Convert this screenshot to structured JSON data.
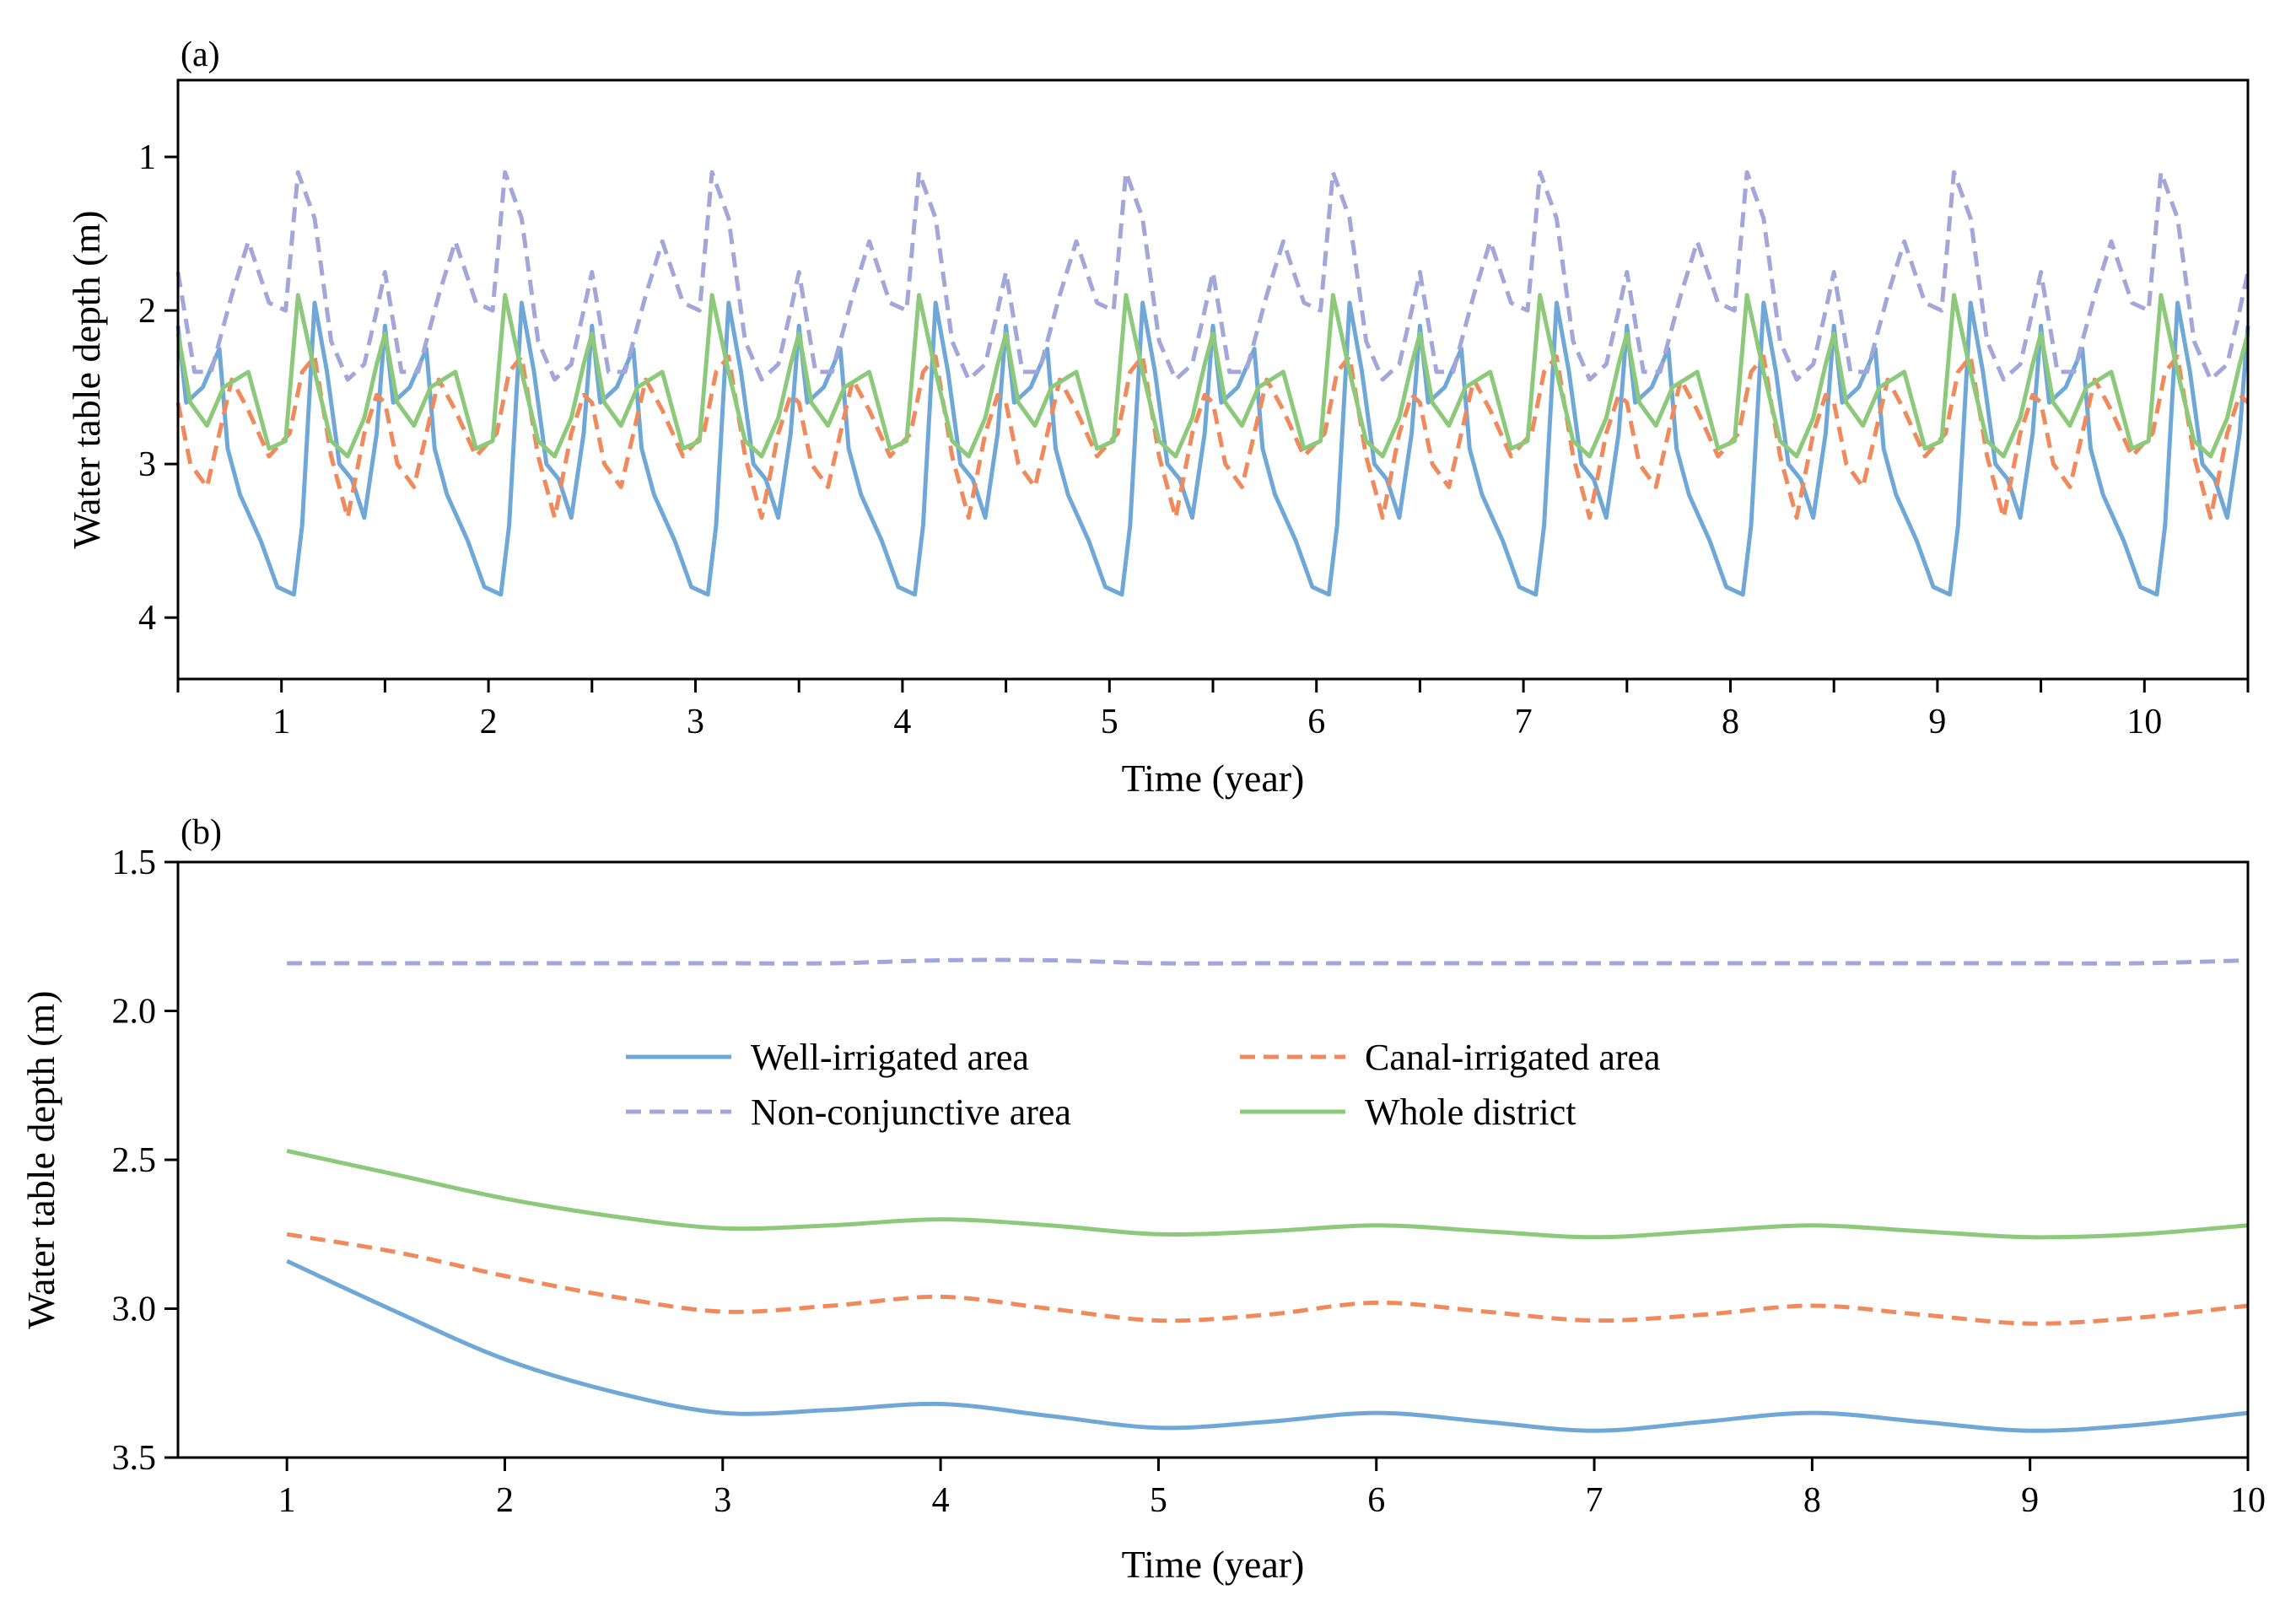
{
  "colors": {
    "well": "#6fa8d6",
    "canal": "#f08a5d",
    "non_conjunctive": "#a3a6d9",
    "whole": "#8dc97a"
  },
  "chart_data": [
    {
      "panel": "(a)",
      "type": "line",
      "xlabel": "Time (year)",
      "ylabel": "Water table depth (m)",
      "xlim": [
        0.5,
        10.5
      ],
      "ylim": [
        0.5,
        4.4
      ],
      "y_inverted": true,
      "xticks": [
        1,
        2,
        3,
        4,
        5,
        6,
        7,
        8,
        9,
        10
      ],
      "yticks": [
        1,
        2,
        3,
        4
      ],
      "x_minor_ticks": [
        0.5,
        1.5,
        2.5,
        3.5,
        4.5,
        5.5,
        6.5,
        7.5,
        8.5,
        9.5,
        10.5
      ],
      "note": "Monthly-resolution series repeating a one-year cycle; x in years from 0.5, values are depth in m",
      "series": [
        {
          "name": "Well-irrigated area",
          "key": "well",
          "dashed": false,
          "cycle_start": 0.5,
          "cycles": 10,
          "cycle_x": [
            0,
            0.04,
            0.12,
            0.2,
            0.24,
            0.3,
            0.4,
            0.48,
            0.56,
            0.6,
            0.66,
            0.72,
            0.78,
            0.84,
            0.9,
            0.96,
            1.0
          ],
          "cycle_y": [
            2.1,
            2.6,
            2.5,
            2.25,
            2.9,
            3.2,
            3.5,
            3.8,
            3.85,
            3.4,
            1.95,
            2.4,
            3.0,
            3.1,
            3.35,
            2.8,
            2.1
          ]
        },
        {
          "name": "Canal-irrigated area",
          "key": "canal",
          "dashed": true,
          "cycle_start": 0.5,
          "cycles": 10,
          "cycle_x": [
            0,
            0.06,
            0.14,
            0.26,
            0.34,
            0.44,
            0.54,
            0.6,
            0.66,
            0.74,
            0.82,
            0.9,
            0.96,
            1.0
          ],
          "cycle_y": [
            2.6,
            3.0,
            3.15,
            2.45,
            2.65,
            2.95,
            2.8,
            2.4,
            2.3,
            2.95,
            3.35,
            2.8,
            2.55,
            2.6
          ]
        },
        {
          "name": "Non-conjunctive area",
          "key": "non_conjunctive",
          "dashed": true,
          "cycle_start": 0.5,
          "cycles": 10,
          "cycle_x": [
            0,
            0.08,
            0.16,
            0.26,
            0.34,
            0.44,
            0.52,
            0.58,
            0.66,
            0.74,
            0.82,
            0.9,
            0.96,
            1.0
          ],
          "cycle_y": [
            1.75,
            2.4,
            2.4,
            1.9,
            1.55,
            1.95,
            2.0,
            1.1,
            1.4,
            2.2,
            2.45,
            2.35,
            2.0,
            1.75
          ]
        },
        {
          "name": "Whole district",
          "key": "whole",
          "dashed": false,
          "cycle_start": 0.5,
          "cycles": 10,
          "cycle_x": [
            0,
            0.06,
            0.14,
            0.22,
            0.28,
            0.34,
            0.44,
            0.52,
            0.58,
            0.66,
            0.74,
            0.82,
            0.9,
            0.96,
            1.0
          ],
          "cycle_y": [
            2.15,
            2.6,
            2.75,
            2.5,
            2.45,
            2.4,
            2.9,
            2.85,
            1.9,
            2.4,
            2.85,
            2.95,
            2.7,
            2.35,
            2.15
          ]
        }
      ]
    },
    {
      "panel": "(b)",
      "type": "line",
      "xlabel": "Time (year)",
      "ylabel": "Water table depth (m)",
      "xlim": [
        0.5,
        10
      ],
      "ylim": [
        1.5,
        3.5
      ],
      "y_inverted": true,
      "xticks": [
        1,
        2,
        3,
        4,
        5,
        6,
        7,
        8,
        9,
        10
      ],
      "yticks": [
        1.5,
        2.0,
        2.5,
        3.0,
        3.5
      ],
      "ytick_labels": [
        "1.5",
        "2.0",
        "2.5",
        "3.0",
        "3.5"
      ],
      "x": [
        1,
        1.5,
        2,
        2.5,
        3,
        3.5,
        4,
        4.5,
        5,
        5.5,
        6,
        6.5,
        7,
        7.5,
        8,
        8.5,
        9,
        9.5,
        10
      ],
      "series": [
        {
          "name": "Well-irrigated area",
          "key": "well",
          "dashed": false,
          "values": [
            2.84,
            3.01,
            3.17,
            3.28,
            3.35,
            3.34,
            3.32,
            3.36,
            3.4,
            3.38,
            3.35,
            3.38,
            3.41,
            3.38,
            3.35,
            3.38,
            3.41,
            3.39,
            3.35
          ]
        },
        {
          "name": "Canal-irrigated area",
          "key": "canal",
          "dashed": true,
          "values": [
            2.75,
            2.81,
            2.89,
            2.96,
            3.01,
            2.99,
            2.96,
            3.0,
            3.04,
            3.02,
            2.98,
            3.01,
            3.04,
            3.02,
            2.99,
            3.02,
            3.05,
            3.03,
            2.99
          ]
        },
        {
          "name": "Non-conjunctive area",
          "key": "non_conjunctive",
          "dashed": true,
          "values": [
            1.84,
            1.84,
            1.84,
            1.84,
            1.84,
            1.84,
            1.83,
            1.83,
            1.84,
            1.84,
            1.84,
            1.84,
            1.84,
            1.84,
            1.84,
            1.84,
            1.84,
            1.84,
            1.83
          ]
        },
        {
          "name": "Whole district",
          "key": "whole",
          "dashed": false,
          "values": [
            2.47,
            2.55,
            2.63,
            2.69,
            2.73,
            2.72,
            2.7,
            2.72,
            2.75,
            2.74,
            2.72,
            2.74,
            2.76,
            2.74,
            2.72,
            2.74,
            2.76,
            2.75,
            2.72
          ]
        }
      ],
      "legend": {
        "placement": "center",
        "columns": 2,
        "entries": [
          {
            "label": "Well-irrigated area",
            "key": "well",
            "dashed": false
          },
          {
            "label": "Canal-irrigated area",
            "key": "canal",
            "dashed": true
          },
          {
            "label": "Non-conjunctive area",
            "key": "non_conjunctive",
            "dashed": true
          },
          {
            "label": "Whole district",
            "key": "whole",
            "dashed": false
          }
        ]
      }
    }
  ]
}
